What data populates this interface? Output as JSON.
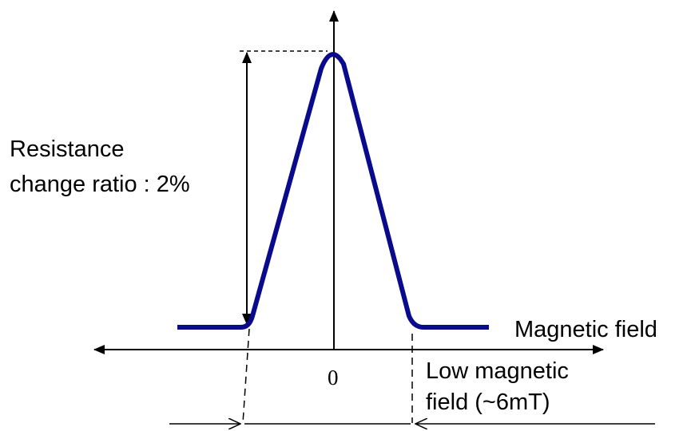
{
  "labels": {
    "resistance_line1": "Resistance",
    "resistance_line2": "change ratio : 2%",
    "magnetic_field": "Magnetic field",
    "origin": "0",
    "low_field_line1": "Low magnetic",
    "low_field_line2": "field (~6mT)"
  },
  "colors": {
    "curve": "#0a0a8c",
    "axis": "#000000"
  }
}
